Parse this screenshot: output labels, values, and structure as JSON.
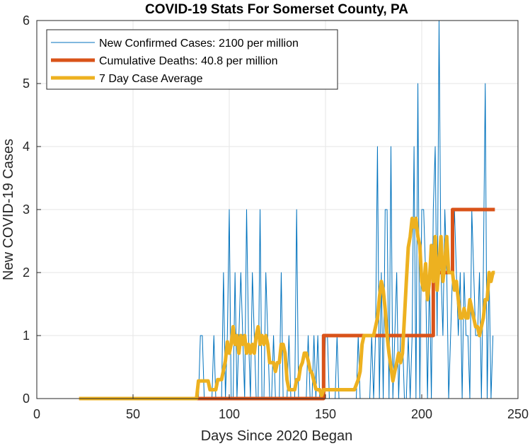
{
  "chart_data": {
    "type": "line",
    "title": "COVID-19 Stats For Somerset County, PA",
    "xlabel": "Days Since 2020 Began",
    "ylabel": "New COVID-19 Cases",
    "xlim": [
      0,
      250
    ],
    "ylim": [
      0,
      6
    ],
    "xticks": [
      0,
      50,
      100,
      150,
      200,
      250
    ],
    "yticks": [
      0,
      1,
      2,
      3,
      4,
      5,
      6
    ],
    "grid": true,
    "legend_position": "top-left",
    "series": [
      {
        "name": "New Confirmed Cases: 2100 per million",
        "color": "#0072BD",
        "line_width": "thin",
        "x_start": 22,
        "values": [
          0,
          0,
          0,
          0,
          0,
          0,
          0,
          0,
          0,
          0,
          0,
          0,
          0,
          0,
          0,
          0,
          0,
          0,
          0,
          0,
          0,
          0,
          0,
          0,
          0,
          0,
          0,
          0,
          0,
          0,
          0,
          0,
          0,
          0,
          0,
          0,
          0,
          0,
          0,
          0,
          0,
          0,
          0,
          0,
          0,
          0,
          0,
          0,
          0,
          0,
          0,
          0,
          0,
          0,
          0,
          0,
          0,
          0,
          0,
          0,
          0,
          0,
          0,
          1,
          1,
          0,
          0,
          0,
          0,
          0,
          1,
          0,
          0,
          0,
          0,
          2,
          0,
          1,
          3,
          0,
          0,
          2,
          0,
          1,
          2,
          1,
          0,
          3,
          1,
          0,
          2,
          1,
          0,
          0,
          3,
          0,
          0,
          2,
          1,
          0,
          0,
          1,
          0,
          0,
          0,
          2,
          0,
          0,
          0,
          1,
          0,
          0,
          0,
          3,
          0,
          0,
          0,
          0,
          0,
          1,
          0,
          0,
          1,
          0,
          1,
          0,
          0,
          0,
          1,
          1,
          0,
          0,
          0,
          0,
          1,
          0,
          0,
          0,
          0,
          0,
          0,
          0,
          0,
          0,
          0,
          1,
          0,
          0,
          0,
          0,
          0,
          0,
          1,
          0,
          1,
          4,
          0,
          2,
          0,
          3,
          3,
          0,
          4,
          0,
          1,
          2,
          0,
          1,
          1,
          0,
          0,
          1,
          0,
          1,
          4,
          0,
          5,
          0,
          3,
          3,
          2,
          0,
          2,
          0,
          3,
          4,
          1,
          6,
          2,
          1,
          3,
          2,
          0,
          1,
          2,
          3,
          2,
          1,
          2,
          0,
          2,
          1,
          1,
          0,
          3,
          2,
          1,
          1,
          2,
          0,
          2,
          5,
          0,
          2,
          0,
          1
        ],
        "end_x": 238
      },
      {
        "name": "Cumulative Deaths: 40.8 per million",
        "color": "#D95319",
        "line_width": "thick",
        "points": [
          [
            22,
            0
          ],
          [
            149,
            0
          ],
          [
            149,
            1
          ],
          [
            206,
            1
          ],
          [
            206,
            2
          ],
          [
            216,
            2
          ],
          [
            216,
            3
          ],
          [
            238,
            3
          ]
        ]
      },
      {
        "name": "7 Day Case Average",
        "color": "#EDB120",
        "line_width": "thick",
        "points": [
          [
            22,
            0
          ],
          [
            83,
            0
          ],
          [
            84,
            0.28
          ],
          [
            89,
            0.28
          ],
          [
            90,
            0.14
          ],
          [
            93,
            0.14
          ],
          [
            94,
            0.3
          ],
          [
            96,
            0.3
          ],
          [
            98,
            0.6
          ],
          [
            99,
            0.9
          ],
          [
            100,
            0.72
          ],
          [
            101,
            0.86
          ],
          [
            102,
            1.14
          ],
          [
            103,
            0.86
          ],
          [
            104,
            1.0
          ],
          [
            105,
            0.72
          ],
          [
            106,
            1.0
          ],
          [
            107,
            0.86
          ],
          [
            108,
            1.0
          ],
          [
            109,
            0.72
          ],
          [
            110,
            0.86
          ],
          [
            111,
            0.72
          ],
          [
            112,
            0.86
          ],
          [
            113,
            0.72
          ],
          [
            114,
            1.0
          ],
          [
            115,
            1.14
          ],
          [
            116,
            0.86
          ],
          [
            117,
            1.0
          ],
          [
            118,
            0.86
          ],
          [
            119,
            1.0
          ],
          [
            120,
            0.86
          ],
          [
            121,
            0.57
          ],
          [
            123,
            0.57
          ],
          [
            124,
            0.43
          ],
          [
            125,
            0.57
          ],
          [
            126,
            0.57
          ],
          [
            127,
            0.86
          ],
          [
            128,
            0.86
          ],
          [
            129,
            0.72
          ],
          [
            130,
            0.3
          ],
          [
            131,
            0.14
          ],
          [
            132,
            0.14
          ],
          [
            134,
            0.14
          ],
          [
            135,
            0.3
          ],
          [
            136,
            0.3
          ],
          [
            137,
            0.5
          ],
          [
            138,
            0.57
          ],
          [
            139,
            0.72
          ],
          [
            140,
            0.72
          ],
          [
            141,
            0.6
          ],
          [
            142,
            0.45
          ],
          [
            143,
            0.4
          ],
          [
            145,
            0.15
          ],
          [
            146,
            0.14
          ],
          [
            147,
            0.14
          ],
          [
            148,
            0.05
          ],
          [
            149,
            0.14
          ],
          [
            151,
            0.14
          ],
          [
            165,
            0.14
          ],
          [
            167,
            0.3
          ],
          [
            168,
            0.43
          ],
          [
            169,
            0.86
          ],
          [
            170,
            1.0
          ],
          [
            171,
            1.0
          ],
          [
            172,
            1.0
          ],
          [
            173,
            1.0
          ],
          [
            175,
            1.0
          ],
          [
            176,
            1.14
          ],
          [
            177,
            1.28
          ],
          [
            178,
            1.6
          ],
          [
            179,
            1.86
          ],
          [
            180,
            1.72
          ],
          [
            181,
            1.42
          ],
          [
            182,
            1.0
          ],
          [
            183,
            0.72
          ],
          [
            184,
            0.5
          ],
          [
            185,
            0.28
          ],
          [
            186,
            0.43
          ],
          [
            187,
            0.57
          ],
          [
            188,
            0.72
          ],
          [
            189,
            0.57
          ],
          [
            190,
            0.72
          ],
          [
            191,
            1.28
          ],
          [
            192,
            1.86
          ],
          [
            193,
            2.4
          ],
          [
            194,
            2.57
          ],
          [
            195,
            2.86
          ],
          [
            196,
            2.72
          ],
          [
            197,
            2.86
          ],
          [
            198,
            2.57
          ],
          [
            199,
            2.43
          ],
          [
            200,
            1.86
          ],
          [
            201,
            1.72
          ],
          [
            202,
            2.14
          ],
          [
            203,
            1.57
          ],
          [
            204,
            1.86
          ],
          [
            205,
            2.43
          ],
          [
            206,
            1.86
          ],
          [
            207,
            2.57
          ],
          [
            208,
            1.72
          ],
          [
            209,
            2.14
          ],
          [
            210,
            2.57
          ],
          [
            211,
            1.86
          ],
          [
            212,
            2.14
          ],
          [
            213,
            2.57
          ],
          [
            214,
            2.0
          ],
          [
            215,
            2.0
          ],
          [
            216,
            2.0
          ],
          [
            217,
            1.72
          ],
          [
            218,
            1.86
          ],
          [
            219,
            1.57
          ],
          [
            220,
            1.28
          ],
          [
            221,
            1.28
          ],
          [
            222,
            1.43
          ],
          [
            223,
            1.28
          ],
          [
            224,
            1.28
          ],
          [
            225,
            1.57
          ],
          [
            226,
            1.43
          ],
          [
            227,
            1.28
          ],
          [
            228,
            1.14
          ],
          [
            229,
            1.14
          ],
          [
            230,
            1.0
          ],
          [
            231,
            1.14
          ],
          [
            232,
            1.28
          ],
          [
            233,
            1.57
          ],
          [
            234,
            1.57
          ],
          [
            235,
            2.0
          ],
          [
            236,
            1.86
          ],
          [
            237,
            2.0
          ],
          [
            238,
            2.0
          ]
        ]
      }
    ]
  }
}
